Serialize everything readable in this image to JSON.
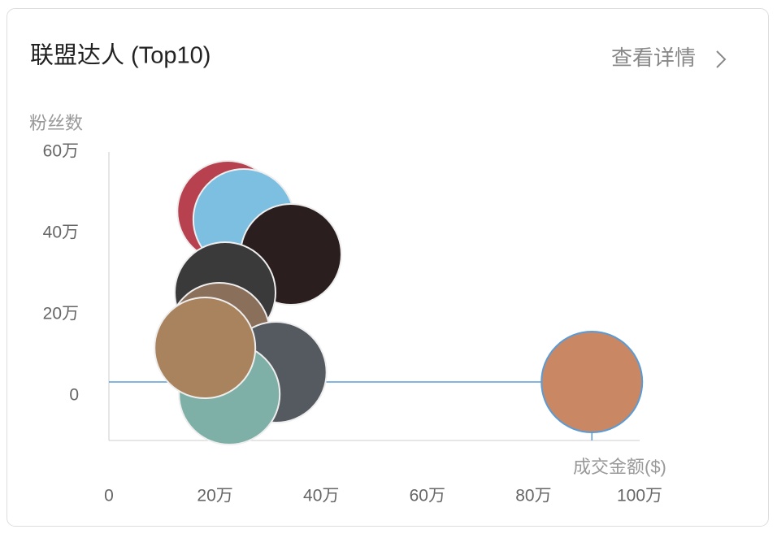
{
  "chart_data": {
    "type": "scatter",
    "title": "联盟达人 (Top10)",
    "link": "查看详情",
    "y_label": "粉丝数",
    "x_label": "成交金额($)",
    "x": [
      224000,
      254000,
      343000,
      219000,
      208000,
      315000,
      227000,
      181000,
      910000
    ],
    "y": [
      454000,
      434000,
      348000,
      254000,
      154000,
      58000,
      4000,
      118000,
      34000
    ],
    "colors": [
      "#b7414f",
      "#7cbfe0",
      "#2a1f1e",
      "#3a3a3a",
      "#8a6f5a",
      "#545a60",
      "#7fb0a8",
      "#a9825e",
      "#c98863"
    ],
    "highlight": 8,
    "xlim": [
      0,
      1000000
    ],
    "xticks": [
      0,
      {
        "value": 200000,
        "label": "20万"
      },
      {
        "value": 400000,
        "label": "40万"
      },
      {
        "value": 600000,
        "label": "60万"
      },
      {
        "value": 800000,
        "label": "80万"
      },
      {
        "value": 1000000,
        "label": "100万"
      }
    ],
    "ylim": [
      -110000,
      600000
    ],
    "yticks": [
      0,
      {
        "value": 200000,
        "label": "20万"
      },
      {
        "value": 400000,
        "label": "40万"
      },
      {
        "value": 600000,
        "label": "60万"
      }
    ]
  }
}
